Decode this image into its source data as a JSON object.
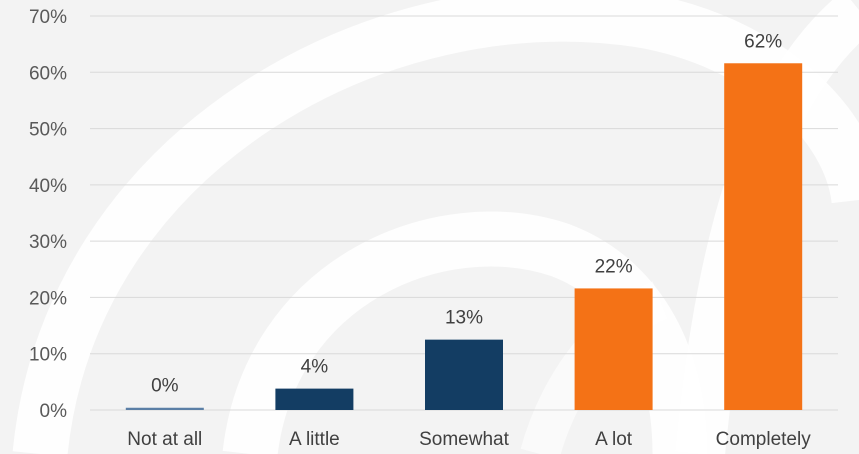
{
  "chart_data": {
    "type": "bar",
    "categories": [
      "Not at all",
      "A little",
      "Somewhat",
      "A lot",
      "Completely"
    ],
    "values": [
      0.4,
      3.8,
      12.5,
      21.6,
      61.6
    ],
    "data_labels": [
      "0%",
      "4%",
      "13%",
      "22%",
      "62%"
    ],
    "bar_colors": [
      "#5b7fa6",
      "#133d63",
      "#133d63",
      "#f47216",
      "#f47216"
    ],
    "ylim": [
      0,
      70
    ],
    "yticks": [
      0,
      10,
      20,
      30,
      40,
      50,
      60,
      70
    ],
    "ytick_labels": [
      "0%",
      "10%",
      "20%",
      "30%",
      "40%",
      "50%",
      "60%",
      "70%"
    ],
    "grid": true,
    "title": "",
    "xlabel": "",
    "ylabel": ""
  },
  "colors": {
    "background": "#f3f3f3",
    "watermark": "#ffffff",
    "gridline": "#d9d9d9",
    "dark_blue": "#133d63",
    "orange": "#f47216"
  }
}
